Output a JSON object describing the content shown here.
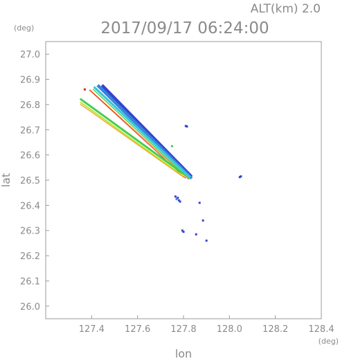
{
  "chart_data": {
    "type": "scatter",
    "header": {
      "altitude_label": "ALT(km) 2.0",
      "datetime": "2017/09/17 06:24:00"
    },
    "xlabel": "lon",
    "ylabel": "lat",
    "x_unit": "(deg)",
    "y_unit": "(deg)",
    "xlim": [
      127.2,
      128.4
    ],
    "ylim": [
      25.95,
      27.05
    ],
    "x_ticks": [
      "127.4",
      "127.6",
      "127.8",
      "128.0",
      "128.2",
      "128.4"
    ],
    "y_ticks": [
      "27.0",
      "26.9",
      "26.8",
      "26.7",
      "26.6",
      "26.5",
      "26.4",
      "26.3",
      "26.2",
      "26.1",
      "26.0"
    ],
    "grid": false,
    "colors": {
      "axis": "#9a9a9a",
      "text": "#8a8a8a",
      "dark_blue": "#3344cc",
      "blue": "#3a7fe0",
      "cyan": "#35c8d8",
      "green": "#44cc55",
      "yellow_green": "#b8e830",
      "orange": "#ff8800",
      "red": "#e02020"
    },
    "bands": [
      {
        "description": "upper band",
        "layers": [
          {
            "color_key": "dark_blue",
            "from": [
              127.43,
              26.883
            ],
            "to": [
              127.82,
              26.52
            ],
            "width_deg": 0.012,
            "offset": [
              0.015,
              -0.006
            ]
          },
          {
            "color_key": "blue",
            "from": [
              127.42,
              26.88
            ],
            "to": [
              127.83,
              26.51
            ],
            "width_deg": 0.012,
            "offset": [
              0.006,
              -0.003
            ]
          },
          {
            "color_key": "cyan",
            "from": [
              127.41,
              26.87
            ],
            "to": [
              127.83,
              26.51
            ],
            "width_deg": 0.009,
            "offset": [
              0,
              0
            ]
          },
          {
            "color_key": "green",
            "from": [
              127.41,
              26.865
            ],
            "to": [
              127.83,
              26.508
            ],
            "width_deg": 0.004,
            "offset": [
              -0.004,
              -0.004
            ]
          },
          {
            "color_key": "orange",
            "from": [
              127.4,
              26.865
            ],
            "to": [
              127.83,
              26.51
            ],
            "width_deg": 0.003,
            "offset": [
              -0.008,
              -0.006
            ]
          },
          {
            "color_key": "red",
            "from": [
              127.4,
              26.866
            ],
            "to": [
              127.82,
              26.515
            ],
            "width_deg": 0.002,
            "offset": [
              -0.01,
              -0.008
            ]
          }
        ]
      },
      {
        "description": "lower band",
        "layers": [
          {
            "color_key": "green",
            "from": [
              127.35,
              26.823
            ],
            "to": [
              127.8,
              26.525
            ],
            "width_deg": 0.008,
            "offset": [
              0,
              0
            ]
          },
          {
            "color_key": "yellow_green",
            "from": [
              127.35,
              26.815
            ],
            "to": [
              127.8,
              26.52
            ],
            "width_deg": 0.006,
            "offset": [
              0,
              -0.005
            ]
          },
          {
            "color_key": "orange",
            "from": [
              127.35,
              26.81
            ],
            "to": [
              127.8,
              26.52
            ],
            "width_deg": 0.002,
            "offset": [
              0,
              -0.008
            ]
          }
        ]
      }
    ],
    "points": [
      {
        "x": 127.81,
        "y": 26.715,
        "color_key": "dark_blue"
      },
      {
        "x": 127.815,
        "y": 26.713,
        "color_key": "dark_blue"
      },
      {
        "x": 128.05,
        "y": 26.515,
        "color_key": "dark_blue"
      },
      {
        "x": 128.045,
        "y": 26.512,
        "color_key": "dark_blue"
      },
      {
        "x": 127.765,
        "y": 26.435,
        "color_key": "dark_blue"
      },
      {
        "x": 127.775,
        "y": 26.43,
        "color_key": "dark_blue"
      },
      {
        "x": 127.78,
        "y": 26.42,
        "color_key": "dark_blue"
      },
      {
        "x": 127.785,
        "y": 26.415,
        "color_key": "dark_blue"
      },
      {
        "x": 127.77,
        "y": 26.425,
        "color_key": "blue"
      },
      {
        "x": 127.87,
        "y": 26.41,
        "color_key": "dark_blue"
      },
      {
        "x": 127.885,
        "y": 26.34,
        "color_key": "dark_blue"
      },
      {
        "x": 127.795,
        "y": 26.3,
        "color_key": "dark_blue"
      },
      {
        "x": 127.8,
        "y": 26.295,
        "color_key": "dark_blue"
      },
      {
        "x": 127.855,
        "y": 26.285,
        "color_key": "dark_blue"
      },
      {
        "x": 127.9,
        "y": 26.26,
        "color_key": "dark_blue"
      },
      {
        "x": 127.75,
        "y": 26.635,
        "color_key": "green"
      },
      {
        "x": 127.37,
        "y": 26.86,
        "color_key": "red"
      }
    ]
  }
}
